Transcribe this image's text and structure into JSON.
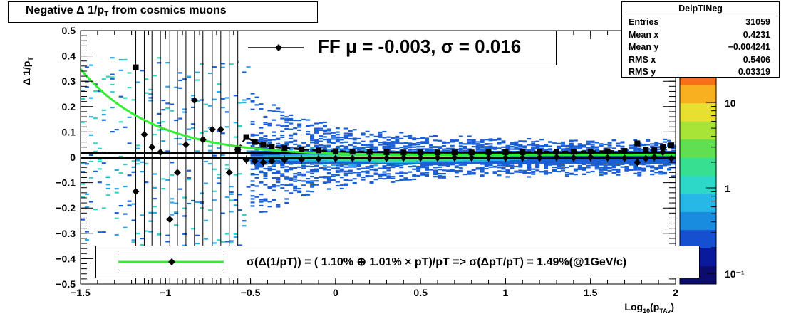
{
  "title": {
    "main": "Negative Δ 1/p",
    "sub": "T",
    "tail": " from cosmics muons"
  },
  "stats": {
    "name": "DelpTINeg",
    "rows": [
      {
        "label": "Entries",
        "value": "31059"
      },
      {
        "label": "Mean x",
        "value": "0.4231"
      },
      {
        "label": "Mean y",
        "value": "−0.004241"
      },
      {
        "label": "RMS x",
        "value": "0.5406"
      },
      {
        "label": "RMS y",
        "value": "0.03319"
      }
    ]
  },
  "ff_legend": "FF μ = -0.003, σ =   0.016",
  "fit_legend": "σ(Δ(1/pT)) = ( 1.10% ⊕  1.01% × pT)/pT => σ(ΔpT/pT) =  1.49%(@1GeV/c)",
  "colors": {
    "fit_curve": "#33ee33",
    "markers": "#000000"
  },
  "chart_data": {
    "type": "heatmap",
    "xlabel": "Log",
    "xlabel_sub1": "10",
    "xlabel_mid": "(p",
    "xlabel_sub2": "TAv",
    "xlabel_end": ")",
    "ylabel": "Δ 1/p",
    "ylabel_sub": "T",
    "xlim": [
      -1.5,
      2
    ],
    "ylim": [
      -0.5,
      0.5
    ],
    "xticks": [
      -1.5,
      -1,
      -0.5,
      0,
      0.5,
      1,
      1.5,
      2
    ],
    "xtick_labels": [
      "−1.5",
      "−1",
      "−0.5",
      "0",
      "0.5",
      "1",
      "1.5",
      "2"
    ],
    "yticks": [
      -0.5,
      -0.4,
      -0.3,
      -0.2,
      -0.1,
      0,
      0.1,
      0.2,
      0.3,
      0.4,
      0.5
    ],
    "ytick_labels": [
      "−0.5",
      "−0.4",
      "−0.3",
      "−0.2",
      "−0.1",
      "0",
      "0.1",
      "0.2",
      "0.3",
      "0.4",
      "0.5"
    ],
    "zscale": "log",
    "ztick_labels": [
      "10",
      "1",
      "10⁻¹"
    ],
    "ztick_values": [
      10,
      1,
      0.1
    ],
    "horizontal_lines": [
      0.017,
      -0.003
    ],
    "mean_points": [
      {
        "x": -1.175,
        "y": -0.135
      },
      {
        "x": -1.125,
        "y": 0.09
      },
      {
        "x": -1.08,
        "y": 0.04
      },
      {
        "x": -1.03,
        "y": 0.02
      },
      {
        "x": -0.975,
        "y": -0.245
      },
      {
        "x": -0.93,
        "y": -0.06
      },
      {
        "x": -0.88,
        "y": 0.05
      },
      {
        "x": -0.83,
        "y": 0.225
      },
      {
        "x": -0.78,
        "y": 0.07
      },
      {
        "x": -0.725,
        "y": 0.11
      },
      {
        "x": -0.675,
        "y": 0.11
      },
      {
        "x": -0.625,
        "y": -0.06
      },
      {
        "x": -0.575,
        "y": 0.03
      },
      {
        "x": -0.525,
        "y": -0.01
      },
      {
        "x": -0.475,
        "y": -0.015
      },
      {
        "x": -0.425,
        "y": -0.02
      },
      {
        "x": -0.375,
        "y": -0.015
      },
      {
        "x": -0.3,
        "y": -0.01
      },
      {
        "x": -0.2,
        "y": -0.008
      },
      {
        "x": -0.1,
        "y": -0.006
      },
      {
        "x": 0.0,
        "y": -0.005
      },
      {
        "x": 0.1,
        "y": -0.004
      },
      {
        "x": 0.2,
        "y": -0.003
      },
      {
        "x": 0.3,
        "y": -0.003
      },
      {
        "x": 0.4,
        "y": -0.002
      },
      {
        "x": 0.5,
        "y": -0.002
      },
      {
        "x": 0.6,
        "y": -0.002
      },
      {
        "x": 0.7,
        "y": -0.002
      },
      {
        "x": 0.8,
        "y": -0.002
      },
      {
        "x": 0.9,
        "y": -0.002
      },
      {
        "x": 1.0,
        "y": -0.002
      },
      {
        "x": 1.1,
        "y": -0.002
      },
      {
        "x": 1.2,
        "y": -0.002
      },
      {
        "x": 1.3,
        "y": 0.0
      },
      {
        "x": 1.4,
        "y": -0.002
      },
      {
        "x": 1.5,
        "y": 0.0
      },
      {
        "x": 1.6,
        "y": -0.002
      },
      {
        "x": 1.7,
        "y": -0.003
      },
      {
        "x": 1.775,
        "y": -0.02
      },
      {
        "x": 1.825,
        "y": -0.005
      },
      {
        "x": 1.875,
        "y": 0.0
      },
      {
        "x": 1.925,
        "y": 0.02
      },
      {
        "x": 1.975,
        "y": -0.005
      }
    ],
    "sigma_points": [
      {
        "x": -1.175,
        "y": 0.355
      },
      {
        "x": -0.575,
        "y": 0.03
      },
      {
        "x": -0.525,
        "y": 0.08
      },
      {
        "x": -0.475,
        "y": 0.06
      },
      {
        "x": -0.425,
        "y": 0.05
      },
      {
        "x": -0.375,
        "y": 0.042
      },
      {
        "x": -0.3,
        "y": 0.036
      },
      {
        "x": -0.2,
        "y": 0.031
      },
      {
        "x": -0.1,
        "y": 0.027
      },
      {
        "x": 0.0,
        "y": 0.024
      },
      {
        "x": 0.1,
        "y": 0.022
      },
      {
        "x": 0.2,
        "y": 0.021
      },
      {
        "x": 0.3,
        "y": 0.02
      },
      {
        "x": 0.4,
        "y": 0.019
      },
      {
        "x": 0.5,
        "y": 0.019
      },
      {
        "x": 0.6,
        "y": 0.019
      },
      {
        "x": 0.7,
        "y": 0.019
      },
      {
        "x": 0.8,
        "y": 0.019
      },
      {
        "x": 0.9,
        "y": 0.02
      },
      {
        "x": 1.0,
        "y": 0.02
      },
      {
        "x": 1.1,
        "y": 0.02
      },
      {
        "x": 1.2,
        "y": 0.021
      },
      {
        "x": 1.3,
        "y": 0.022
      },
      {
        "x": 1.4,
        "y": 0.022
      },
      {
        "x": 1.5,
        "y": 0.023
      },
      {
        "x": 1.6,
        "y": 0.024
      },
      {
        "x": 1.7,
        "y": 0.025
      },
      {
        "x": 1.775,
        "y": 0.055
      },
      {
        "x": 1.825,
        "y": 0.03
      },
      {
        "x": 1.875,
        "y": 0.028
      },
      {
        "x": 1.925,
        "y": 0.04
      },
      {
        "x": 1.975,
        "y": 0.047
      }
    ],
    "fit_curve": {
      "a": 0.011,
      "b": 0.0101
    }
  }
}
